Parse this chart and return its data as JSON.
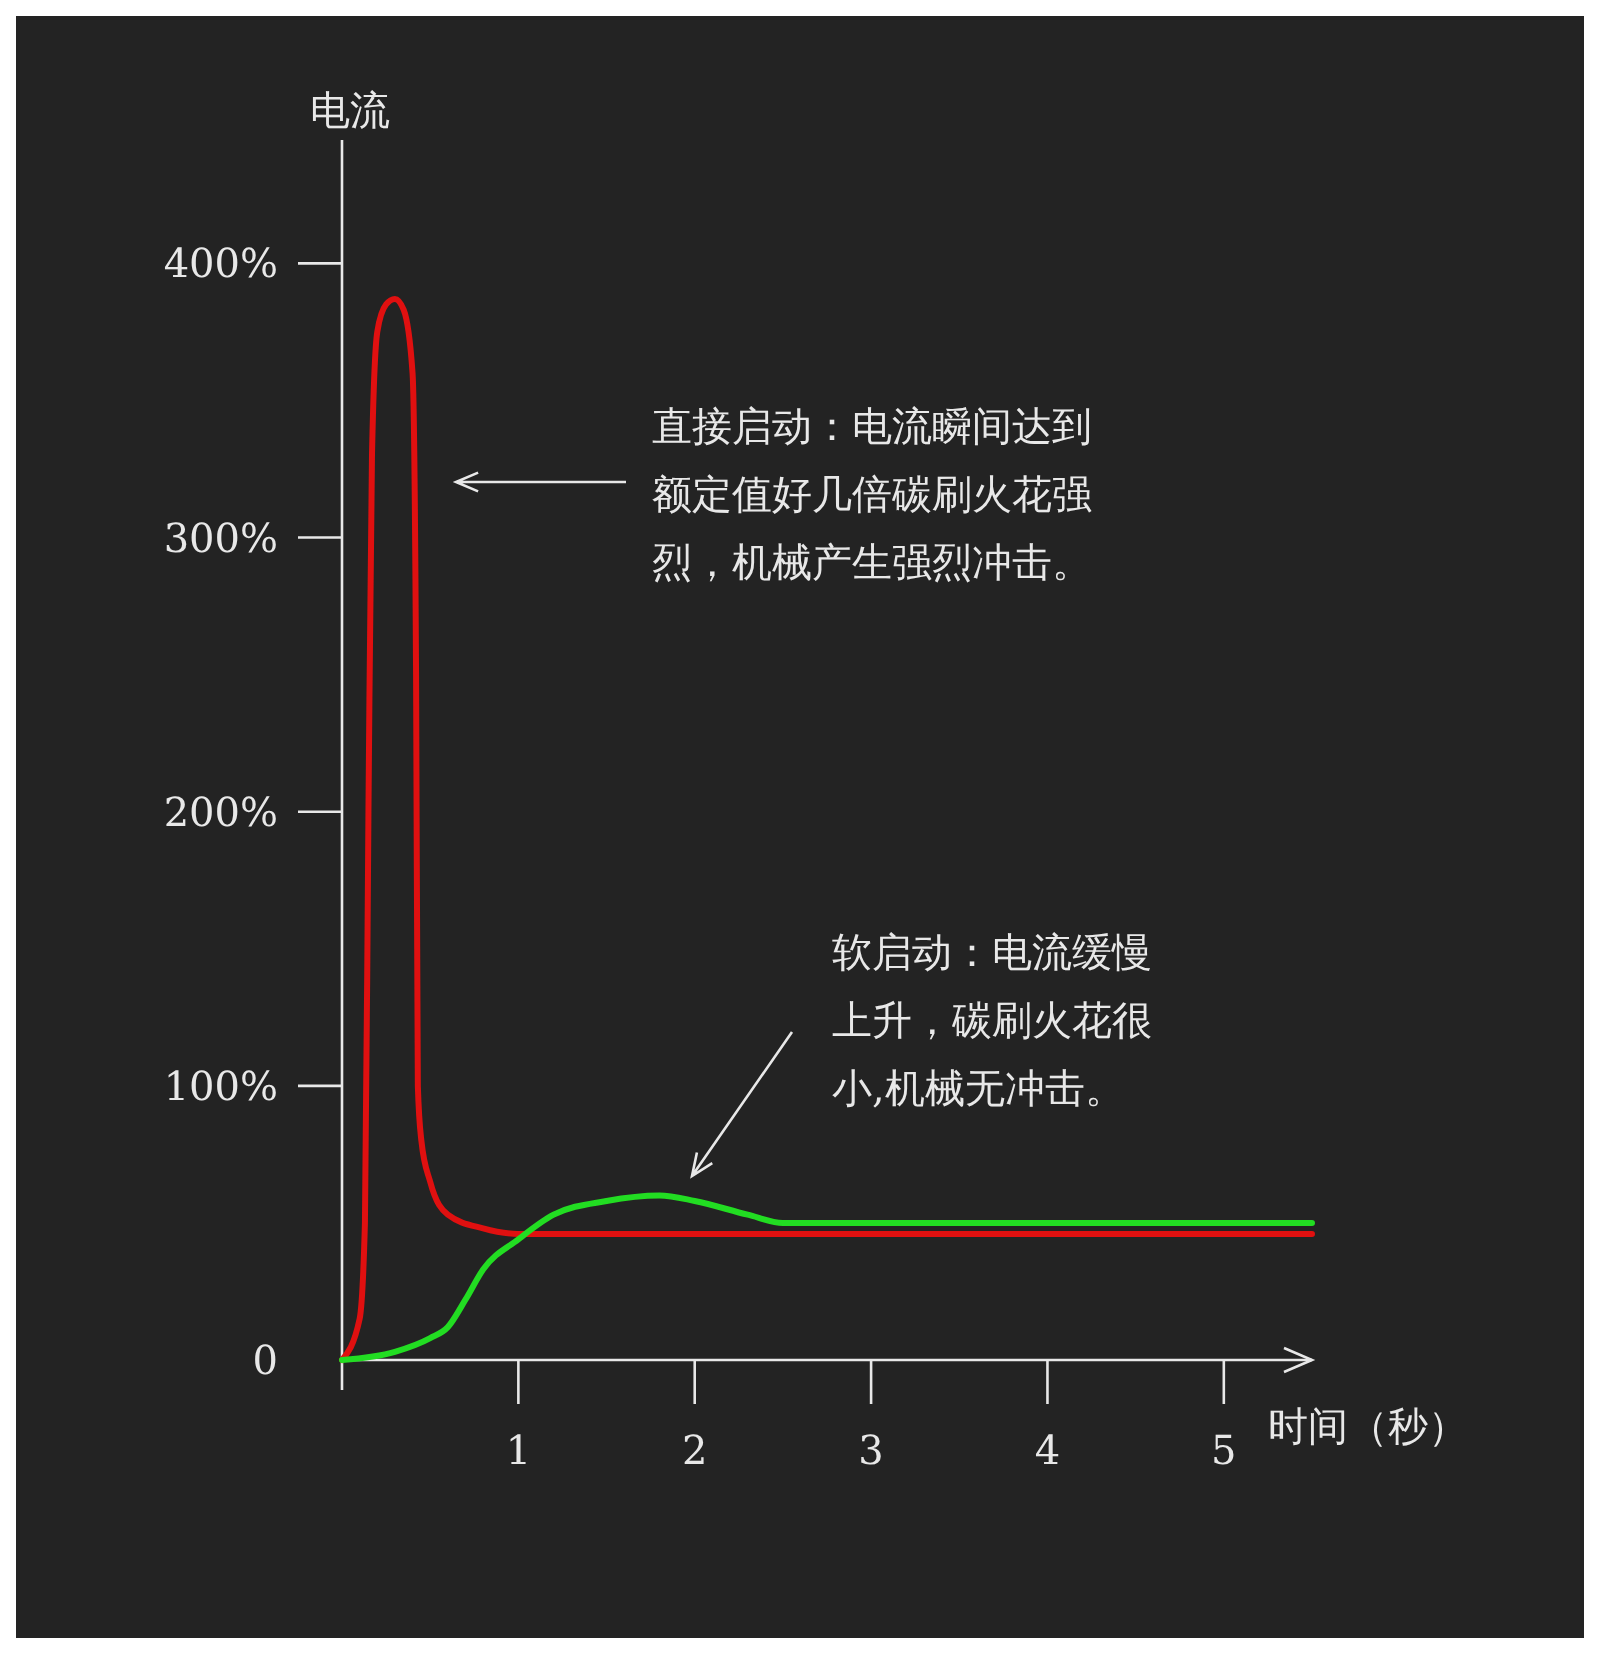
{
  "chart_data": {
    "type": "line",
    "xlabel": "时间（秒）",
    "ylabel": "电流",
    "xlim": [
      0,
      5.5
    ],
    "ylim": [
      0,
      445
    ],
    "xticks": [
      1,
      2,
      3,
      4,
      5
    ],
    "yticks": [
      {
        "value": 0,
        "label": "0"
      },
      {
        "value": 100,
        "label": "100%"
      },
      {
        "value": 200,
        "label": "200%"
      },
      {
        "value": 300,
        "label": "300%"
      },
      {
        "value": 400,
        "label": "400%"
      }
    ],
    "grid": false,
    "marker": "none",
    "line_style": "solid",
    "series": [
      {
        "color": "#e01010",
        "x": [
          0,
          0.1,
          0.13,
          0.15,
          0.17,
          0.2,
          0.25,
          0.3,
          0.35,
          0.4,
          0.42,
          0.43,
          0.45,
          0.5,
          0.6,
          0.8,
          1,
          1.5,
          5.5
        ],
        "values": [
          0,
          15,
          50,
          200,
          330,
          375,
          385,
          387,
          383,
          360,
          250,
          100,
          80,
          65,
          53,
          48,
          46,
          46,
          46
        ]
      },
      {
        "color": "#22dd22",
        "x": [
          0,
          0.3,
          0.5,
          0.6,
          0.7,
          0.8,
          1,
          1.2,
          1.5,
          1.8,
          2,
          2.3,
          2.5,
          3,
          5.5
        ],
        "values": [
          0,
          3,
          8,
          12,
          22,
          33,
          44,
          53,
          58,
          60,
          58,
          53,
          50,
          50,
          50
        ]
      }
    ],
    "annotations": [
      "直接启动：电流瞬间达到额定值好几倍碳刷火花强烈，机械产生强烈冲击。",
      "软启动：电流缓慢上升，碳刷火花很小,机械无冲击。"
    ]
  }
}
